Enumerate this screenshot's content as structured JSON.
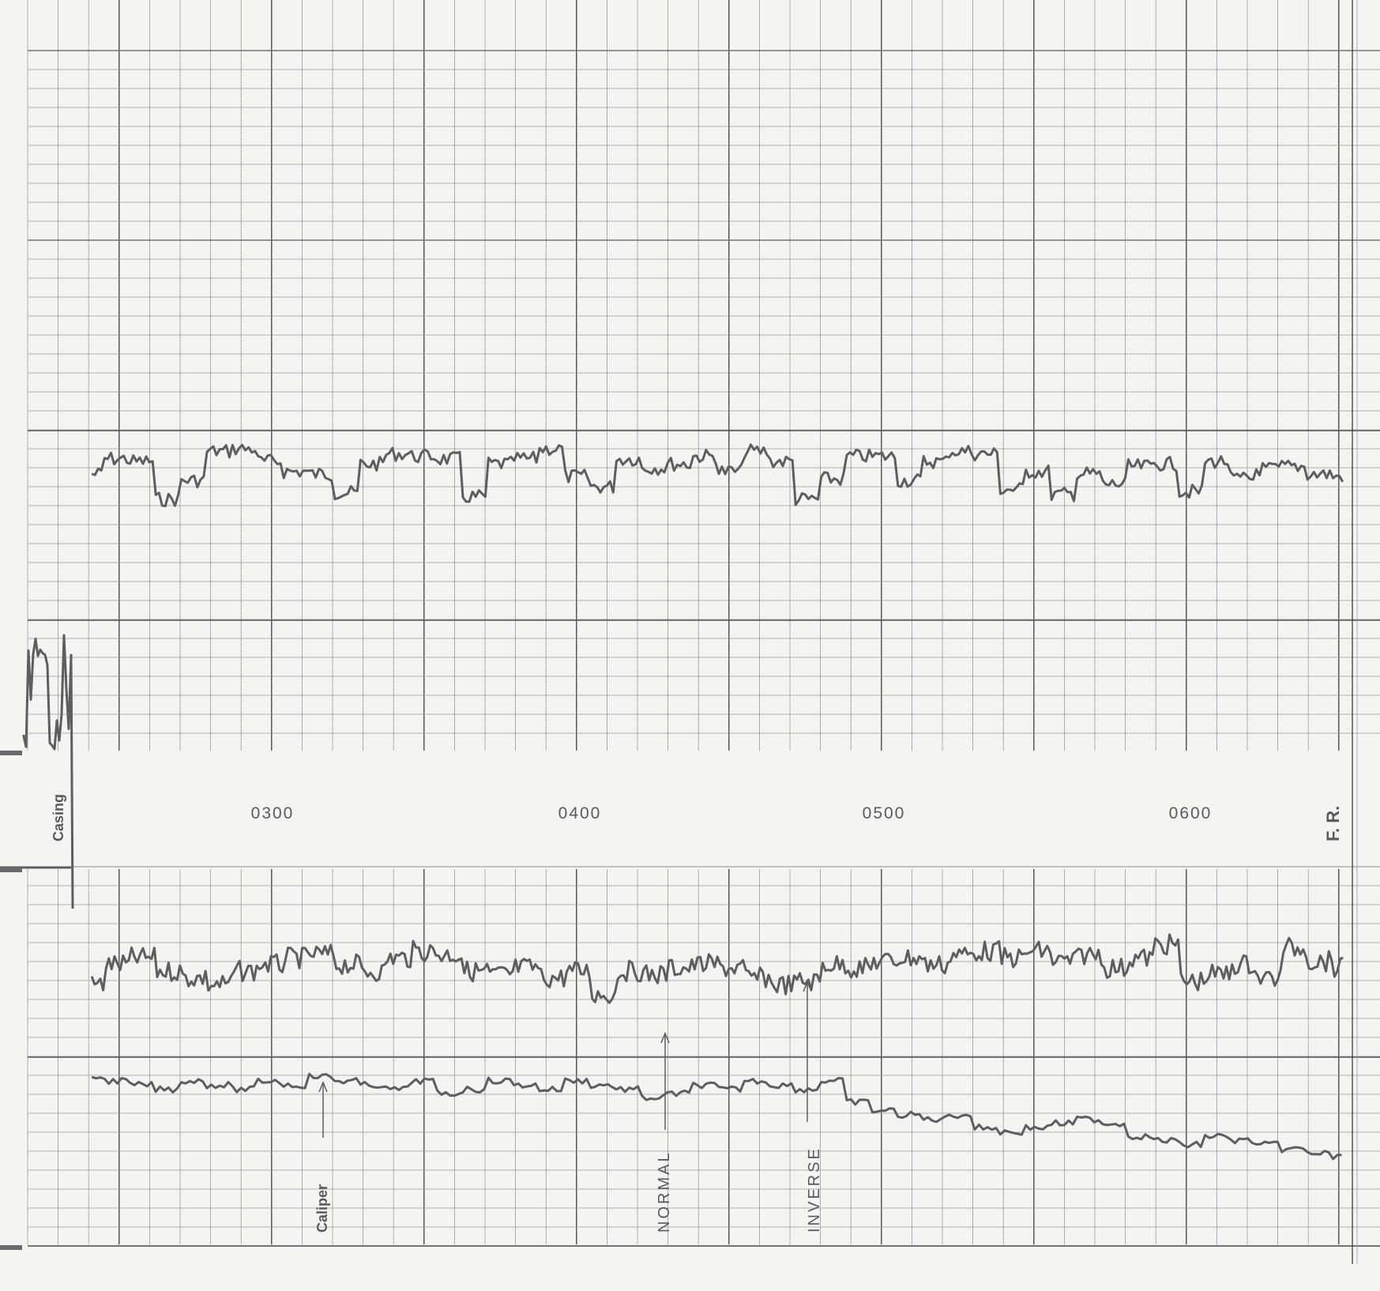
{
  "chart_data": {
    "type": "line",
    "xlabel": "",
    "ylabel": "",
    "x_ticks": [
      "0300",
      "0400",
      "0500",
      "0600"
    ],
    "x_range": [
      200,
      700
    ],
    "labels": {
      "casing": "Casing",
      "fr": "F. R.",
      "caliper": "Caliper",
      "normal": "NORMAL",
      "inverse": "INVERSE"
    },
    "series": [
      {
        "name": "INVERSE",
        "x": [
          205,
          215,
          225,
          235,
          245,
          255,
          265,
          275,
          285,
          295,
          305,
          315,
          325,
          335,
          345,
          355,
          365,
          375,
          385,
          395,
          405,
          415,
          425,
          435,
          445,
          455,
          465,
          475,
          485,
          495,
          505,
          515,
          525,
          535,
          545,
          555,
          565,
          575,
          585,
          595,
          605,
          615,
          625,
          635,
          645,
          655,
          665,
          675,
          685,
          695
        ],
        "values": [
          0.5,
          0.62,
          0.6,
          0.3,
          0.45,
          0.68,
          0.7,
          0.6,
          0.52,
          0.5,
          0.35,
          0.58,
          0.66,
          0.64,
          0.62,
          0.32,
          0.58,
          0.62,
          0.7,
          0.48,
          0.4,
          0.62,
          0.55,
          0.58,
          0.64,
          0.52,
          0.68,
          0.6,
          0.3,
          0.46,
          0.64,
          0.64,
          0.45,
          0.6,
          0.68,
          0.66,
          0.38,
          0.52,
          0.34,
          0.5,
          0.42,
          0.56,
          0.58,
          0.36,
          0.6,
          0.46,
          0.54,
          0.56,
          0.5,
          0.48
        ]
      },
      {
        "name": "NORMAL",
        "x": [
          205,
          215,
          225,
          235,
          245,
          255,
          265,
          275,
          285,
          295,
          305,
          315,
          325,
          335,
          345,
          355,
          365,
          375,
          385,
          395,
          405,
          415,
          425,
          435,
          445,
          455,
          465,
          475,
          485,
          495,
          505,
          515,
          525,
          535,
          545,
          555,
          565,
          575,
          585,
          595,
          605,
          615,
          625,
          635,
          645,
          655,
          665,
          675,
          685,
          695
        ],
        "values": [
          0.4,
          0.52,
          0.56,
          0.48,
          0.44,
          0.4,
          0.48,
          0.52,
          0.56,
          0.58,
          0.52,
          0.48,
          0.56,
          0.6,
          0.58,
          0.48,
          0.46,
          0.5,
          0.44,
          0.48,
          0.34,
          0.48,
          0.46,
          0.5,
          0.52,
          0.5,
          0.44,
          0.4,
          0.42,
          0.52,
          0.5,
          0.54,
          0.56,
          0.52,
          0.58,
          0.6,
          0.56,
          0.6,
          0.54,
          0.58,
          0.5,
          0.56,
          0.64,
          0.42,
          0.46,
          0.52,
          0.44,
          0.62,
          0.54,
          0.5
        ]
      },
      {
        "name": "Caliper",
        "x": [
          205,
          215,
          225,
          235,
          245,
          255,
          265,
          275,
          285,
          295,
          305,
          315,
          325,
          335,
          345,
          355,
          365,
          375,
          385,
          395,
          405,
          415,
          425,
          435,
          445,
          455,
          465,
          475,
          485,
          495,
          505,
          515,
          525,
          535,
          545,
          555,
          565,
          575,
          585,
          595,
          605,
          615,
          625,
          635,
          645,
          655,
          665,
          675,
          685,
          695
        ],
        "values": [
          0.62,
          0.6,
          0.58,
          0.56,
          0.6,
          0.58,
          0.56,
          0.6,
          0.58,
          0.62,
          0.6,
          0.58,
          0.56,
          0.6,
          0.54,
          0.56,
          0.6,
          0.58,
          0.56,
          0.6,
          0.58,
          0.56,
          0.52,
          0.54,
          0.58,
          0.56,
          0.6,
          0.58,
          0.56,
          0.6,
          0.5,
          0.46,
          0.44,
          0.42,
          0.44,
          0.38,
          0.36,
          0.38,
          0.4,
          0.42,
          0.4,
          0.34,
          0.32,
          0.3,
          0.34,
          0.32,
          0.3,
          0.28,
          0.26,
          0.24
        ]
      }
    ]
  }
}
